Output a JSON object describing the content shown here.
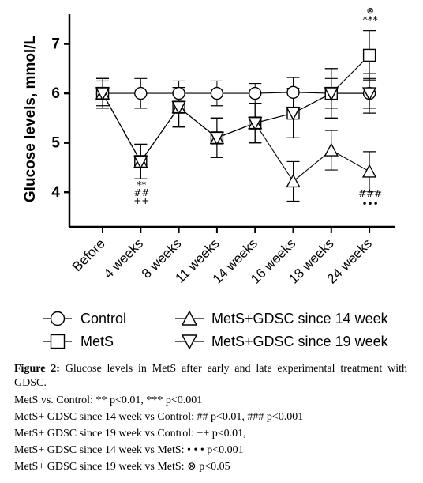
{
  "chart_data": {
    "type": "line",
    "ylabel": "Glucose levels, mmol/L",
    "xlabel": "",
    "ylim": [
      3.3,
      7.6
    ],
    "yticks": [
      "4",
      "5",
      "6",
      "7"
    ],
    "categories": [
      "Before",
      "4 weeks",
      "8 weeks",
      "11 weeks",
      "14 weeks",
      "16 weeks",
      "18 weeks",
      "24 weeks"
    ],
    "grid": false,
    "legend_position": "bottom",
    "series": [
      {
        "name": "Control",
        "marker": "circle",
        "values": [
          6.0,
          6.0,
          6.0,
          6.0,
          6.0,
          6.02,
          6.0,
          6.0
        ],
        "errors": [
          0.25,
          0.3,
          0.25,
          0.25,
          0.2,
          0.3,
          0.3,
          0.3
        ]
      },
      {
        "name": "MetS",
        "marker": "square",
        "values": [
          6.0,
          4.62,
          5.72,
          5.1,
          5.4,
          5.6,
          6.0,
          6.77
        ],
        "errors": [
          0.3,
          0.35,
          0.4,
          0.4,
          0.4,
          0.5,
          0.5,
          0.5
        ]
      },
      {
        "name": "MetS+GDSC since 14 week",
        "marker": "triangle-up",
        "values": [
          6.0,
          4.62,
          5.72,
          5.1,
          5.4,
          4.22,
          4.85,
          4.42
        ],
        "errors": [
          0.3,
          0.35,
          0.4,
          0.4,
          0.4,
          0.4,
          0.4,
          0.4
        ]
      },
      {
        "name": "MetS+GDSC since 19 week",
        "marker": "triangle-down",
        "values": [
          6.0,
          4.62,
          5.72,
          5.1,
          5.4,
          5.6,
          6.0,
          6.0
        ],
        "errors": [
          0.3,
          0.35,
          0.4,
          0.4,
          0.4,
          0.5,
          0.5,
          0.4
        ]
      }
    ],
    "annotations": [
      {
        "category": "4 weeks",
        "lines": [
          "**",
          "##",
          "++"
        ]
      },
      {
        "category": "24 weeks",
        "above": [
          "⊗",
          "***"
        ],
        "below": [
          "###",
          "•••"
        ]
      }
    ]
  },
  "caption": {
    "figure_label": "Figure 2:",
    "figure_text": " Glucose levels in MetS after early and late experimental treatment with GDSC.",
    "notes": [
      "MetS vs. Control: ** p<0.01, *** p<0.001",
      "MetS+ GDSC since 14 week vs Control: ## p<0.01, ### p<0.001",
      "MetS+ GDSC since 19 week vs Control: ++ p<0.01,",
      "MetS+ GDSC since 14 week vs MetS: • • • p<0.001",
      "MetS+ GDSC since 19 week vs MetS: ⊗ p<0.05"
    ]
  }
}
